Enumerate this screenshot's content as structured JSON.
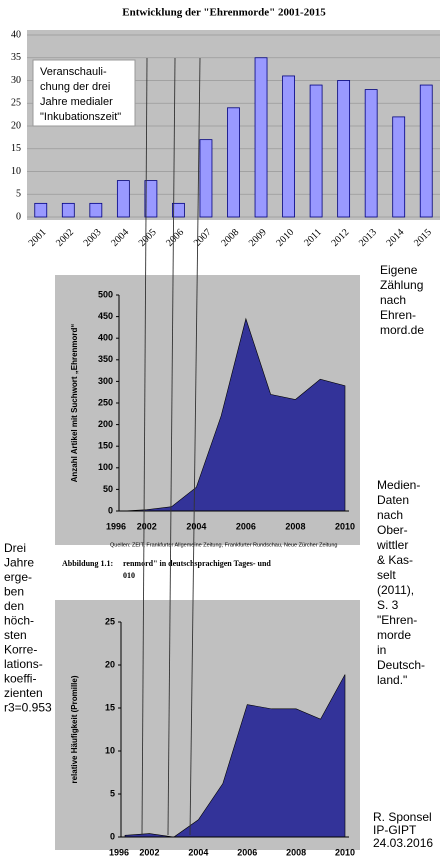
{
  "chart_data": [
    {
      "type": "bar",
      "title": "Entwicklung der \"Ehrenmorde\" 2001-2015",
      "categories": [
        "2001",
        "2002",
        "2003",
        "2004",
        "2005",
        "2006",
        "2007",
        "2008",
        "2009",
        "2010",
        "2011",
        "2012",
        "2013",
        "2014",
        "2015"
      ],
      "values": [
        3,
        3,
        3,
        8,
        8,
        3,
        17,
        24,
        35,
        31,
        29,
        30,
        28,
        22,
        29
      ],
      "color": "#9999ff",
      "ylim": [
        0,
        40
      ],
      "yticks": [
        0,
        5,
        10,
        15,
        20,
        25,
        30,
        35,
        40
      ],
      "grid": true,
      "annotation": [
        "Veranschauli-",
        "chung der drei",
        "Jahre medialer",
        "\"Inkubationszeit\""
      ]
    },
    {
      "type": "area",
      "ylabel": "Anzahl Artikel mit Suchwort „Ehrenmord“",
      "categories": [
        "1996",
        "2002",
        null,
        "2004",
        null,
        "2006",
        null,
        "2008",
        null,
        "2010"
      ],
      "values": [
        0,
        3,
        10,
        55,
        220,
        445,
        270,
        258,
        305,
        290
      ],
      "color": "#333399",
      "ylim": [
        0,
        500
      ],
      "yticks": [
        0,
        50,
        100,
        150,
        200,
        250,
        300,
        350,
        400,
        450,
        500
      ],
      "source": "Quellen: ZEIT, Frankfurter Allgemeine Zeitung, Frankfurter Rundschau, Neue Zürcher Zeitung",
      "caption": [
        "Abbildung 1.1:",
        "renmord\" in deutschsprachigen Tages- und",
        "010"
      ]
    },
    {
      "type": "area",
      "ylabel": "relative Häufigkeit (Promille)",
      "categories": [
        "1996",
        "2002",
        null,
        "2004",
        null,
        "2006",
        null,
        "2008",
        null,
        "2010"
      ],
      "values": [
        0.2,
        0.4,
        0,
        2,
        6.2,
        15.4,
        14.9,
        14.9,
        13.7,
        18.9
      ],
      "color": "#333399",
      "ylim": [
        0,
        25
      ],
      "yticks": [
        0,
        5,
        10,
        15,
        20,
        25
      ]
    }
  ],
  "notes": {
    "count": [
      "Eigene",
      "Zählung",
      "nach",
      "Ehren-",
      "mord.de"
    ],
    "media": [
      "Medien-",
      "Daten",
      "nach",
      "Ober-",
      "wittler",
      "& Kas-",
      "selt",
      " (2011),",
      "S. 3",
      "\"Ehren-",
      "morde",
      "in",
      "Deutsch-",
      "land.\""
    ],
    "corr": [
      "Drei",
      "Jahre",
      "erge-",
      "ben",
      "den",
      "höch-",
      "sten",
      "Korre-",
      "lations-",
      "koeffi-",
      "zienten",
      "r3=0.953"
    ],
    "author": [
      "R. Sponsel",
      "IP-GIPT",
      "24.03.2016"
    ]
  }
}
